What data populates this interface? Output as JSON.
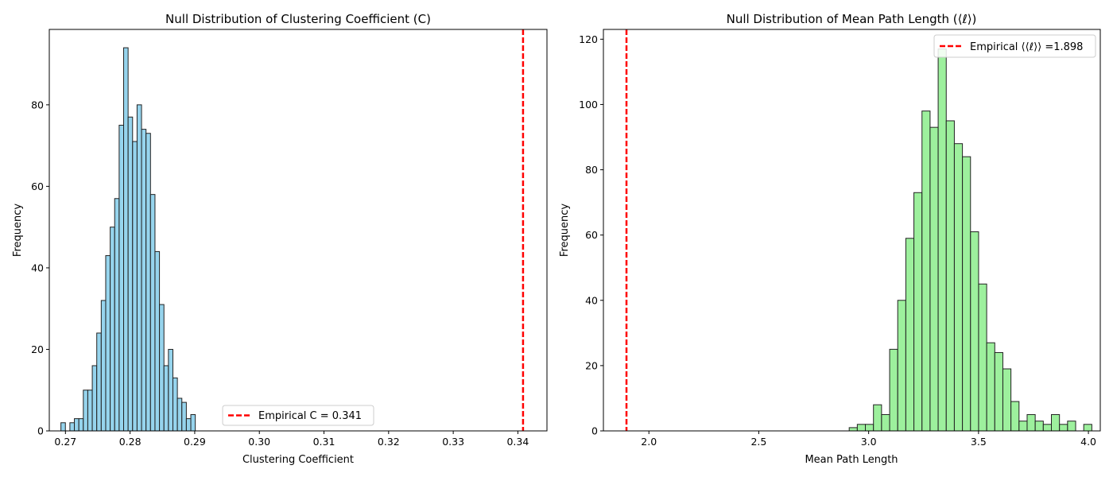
{
  "chart_data": [
    {
      "type": "bar",
      "title": "Null Distribution of Clustering Coefficient (C)",
      "xlabel": "Clustering Coefficient",
      "ylabel": "Frequency",
      "xlim": [
        0.2675,
        0.3445
      ],
      "ylim": [
        0,
        98.5
      ],
      "xticks": [
        "0.27",
        "0.28",
        "0.29",
        "0.30",
        "0.31",
        "0.32",
        "0.33",
        "0.34"
      ],
      "yticks": [
        "0",
        "20",
        "40",
        "60",
        "80"
      ],
      "bar_color": "#87ceeb",
      "edge_color": "#222222",
      "bins": {
        "start": 0.2693,
        "width": 0.000693,
        "counts": [
          2,
          0,
          2,
          3,
          3,
          10,
          10,
          16,
          24,
          32,
          43,
          50,
          57,
          75,
          94,
          77,
          71,
          80,
          74,
          73,
          58,
          44,
          31,
          16,
          20,
          13,
          8,
          7,
          3,
          4
        ]
      },
      "reference_line": {
        "value": 0.3408,
        "color": "#ff0000",
        "style": "dashed"
      },
      "legend": {
        "label": "Empirical C = 0.341",
        "position": "lower-right"
      },
      "grid": false
    },
    {
      "type": "bar",
      "title": "Null Distribution of Mean Path Length (⟨ℓ⟩)",
      "xlabel": "Mean Path Length",
      "ylabel": "Frequency",
      "xlim": [
        1.793,
        4.054
      ],
      "ylim": [
        0,
        123
      ],
      "xticks": [
        "2.0",
        "2.5",
        "3.0",
        "3.5",
        "4.0"
      ],
      "yticks": [
        "0",
        "20",
        "40",
        "60",
        "80",
        "100",
        "120"
      ],
      "bar_color": "#90ee90",
      "edge_color": "#222222",
      "bins": {
        "start": 2.9115,
        "width": 0.0368,
        "counts": [
          1,
          2,
          2,
          8,
          5,
          25,
          40,
          59,
          73,
          98,
          93,
          117,
          95,
          88,
          84,
          61,
          45,
          27,
          24,
          19,
          9,
          3,
          5,
          3,
          2,
          5,
          2,
          3,
          0,
          2
        ]
      },
      "reference_line": {
        "value": 1.898,
        "color": "#ff0000",
        "style": "dashed"
      },
      "legend": {
        "label": "Empirical ⟨⟨ℓ⟩⟩ =1.898",
        "position": "upper-right"
      },
      "grid": false
    }
  ]
}
